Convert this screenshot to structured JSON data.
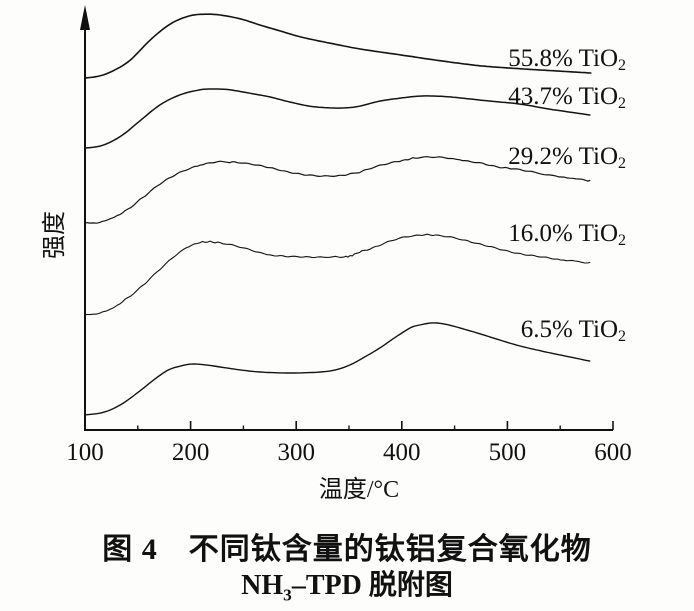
{
  "figure": {
    "caption_line1": "图 4　不同钛含量的钛铝复合氧化物",
    "caption_line2": {
      "prefix": "NH",
      "sub": "3",
      "suffix": "–TPD 脱附图"
    }
  },
  "chart_data": {
    "type": "line",
    "title": "图 4 不同钛含量的钛铝复合氧化物 NH3-TPD 脱附图",
    "xlabel": "温度/°C",
    "ylabel": "强度",
    "xlim": [
      100,
      600
    ],
    "ylim": [
      0,
      105
    ],
    "x_major_ticks": [
      100,
      200,
      300,
      400,
      500,
      600
    ],
    "x_minor_ticks": [
      150,
      250,
      350,
      450,
      550
    ],
    "x_tick_labels": [
      "100",
      "200",
      "300",
      "400",
      "500",
      "600"
    ],
    "grid": false,
    "legend_position": "inline-right-of-curves",
    "y_axis_style": "arrow, no ticks, intensity in arbitrary units",
    "series": [
      {
        "name": "55.8% TiO2",
        "label_main": "55.8% TiO",
        "label_sub": "2",
        "noisy": false,
        "points": [
          [
            100,
            83.8
          ],
          [
            114,
            84.3
          ],
          [
            128,
            85.7
          ],
          [
            143,
            88.1
          ],
          [
            162,
            92.9
          ],
          [
            181,
            96.7
          ],
          [
            199,
            98.6
          ],
          [
            214,
            99.0
          ],
          [
            228,
            98.8
          ],
          [
            247,
            97.9
          ],
          [
            266,
            96.4
          ],
          [
            285,
            95.0
          ],
          [
            304,
            93.6
          ],
          [
            332,
            92.1
          ],
          [
            361,
            90.7
          ],
          [
            399,
            89.3
          ],
          [
            437,
            87.9
          ],
          [
            475,
            86.7
          ],
          [
            513,
            86.0
          ],
          [
            546,
            85.5
          ],
          [
            579,
            85.0
          ]
        ]
      },
      {
        "name": "43.7% TiO2",
        "label_main": "43.7% TiO",
        "label_sub": "2",
        "noisy": false,
        "points": [
          [
            100,
            67.1
          ],
          [
            114,
            67.6
          ],
          [
            126,
            68.8
          ],
          [
            138,
            70.7
          ],
          [
            152,
            73.6
          ],
          [
            171,
            77.4
          ],
          [
            190,
            79.8
          ],
          [
            209,
            81.0
          ],
          [
            223,
            81.2
          ],
          [
            237,
            81.0
          ],
          [
            256,
            80.2
          ],
          [
            275,
            79.3
          ],
          [
            294,
            78.1
          ],
          [
            313,
            77.1
          ],
          [
            332,
            76.7
          ],
          [
            346,
            76.7
          ],
          [
            360,
            77.1
          ],
          [
            379,
            78.3
          ],
          [
            398,
            79.0
          ],
          [
            417,
            79.5
          ],
          [
            432,
            79.5
          ],
          [
            446,
            79.3
          ],
          [
            465,
            78.8
          ],
          [
            484,
            78.3
          ],
          [
            512,
            77.6
          ],
          [
            540,
            76.4
          ],
          [
            559,
            75.7
          ],
          [
            578,
            75.0
          ]
        ]
      },
      {
        "name": "29.2% TiO2",
        "label_main": "29.2% TiO",
        "label_sub": "2",
        "noisy": true,
        "points": [
          [
            100,
            49.3
          ],
          [
            114,
            49.5
          ],
          [
            126,
            50.5
          ],
          [
            138,
            52.1
          ],
          [
            152,
            54.8
          ],
          [
            171,
            58.6
          ],
          [
            190,
            61.4
          ],
          [
            209,
            63.1
          ],
          [
            223,
            63.8
          ],
          [
            237,
            63.8
          ],
          [
            256,
            63.3
          ],
          [
            275,
            62.4
          ],
          [
            294,
            61.4
          ],
          [
            313,
            60.7
          ],
          [
            332,
            60.5
          ],
          [
            346,
            60.7
          ],
          [
            360,
            61.4
          ],
          [
            379,
            62.9
          ],
          [
            398,
            64.0
          ],
          [
            413,
            64.8
          ],
          [
            427,
            65.0
          ],
          [
            441,
            64.8
          ],
          [
            455,
            64.3
          ],
          [
            474,
            63.6
          ],
          [
            493,
            62.6
          ],
          [
            512,
            61.9
          ],
          [
            540,
            60.7
          ],
          [
            559,
            60.0
          ],
          [
            578,
            59.3
          ]
        ]
      },
      {
        "name": "16.0% TiO2",
        "label_main": "16.0% TiO",
        "label_sub": "2",
        "noisy": true,
        "points": [
          [
            100,
            27.4
          ],
          [
            114,
            27.9
          ],
          [
            126,
            29.0
          ],
          [
            138,
            31.0
          ],
          [
            152,
            33.8
          ],
          [
            171,
            38.3
          ],
          [
            190,
            42.4
          ],
          [
            204,
            44.3
          ],
          [
            216,
            44.8
          ],
          [
            228,
            44.5
          ],
          [
            242,
            43.8
          ],
          [
            256,
            42.9
          ],
          [
            270,
            41.9
          ],
          [
            285,
            41.4
          ],
          [
            304,
            41.2
          ],
          [
            323,
            41.2
          ],
          [
            342,
            41.2
          ],
          [
            351,
            41.4
          ],
          [
            360,
            42.4
          ],
          [
            375,
            43.6
          ],
          [
            389,
            45.0
          ],
          [
            403,
            46.0
          ],
          [
            417,
            46.4
          ],
          [
            432,
            46.4
          ],
          [
            446,
            46.0
          ],
          [
            460,
            45.2
          ],
          [
            474,
            44.3
          ],
          [
            493,
            43.1
          ],
          [
            512,
            41.9
          ],
          [
            531,
            41.2
          ],
          [
            550,
            40.5
          ],
          [
            564,
            40.2
          ],
          [
            578,
            39.8
          ]
        ]
      },
      {
        "name": "6.5% TiO2",
        "label_main": "6.5% TiO",
        "label_sub": "2",
        "noisy": false,
        "points": [
          [
            100,
            3.6
          ],
          [
            114,
            4.0
          ],
          [
            126,
            5.0
          ],
          [
            138,
            6.7
          ],
          [
            152,
            9.3
          ],
          [
            166,
            12.1
          ],
          [
            179,
            14.3
          ],
          [
            190,
            15.2
          ],
          [
            201,
            15.7
          ],
          [
            214,
            15.5
          ],
          [
            228,
            15.0
          ],
          [
            247,
            14.3
          ],
          [
            266,
            13.8
          ],
          [
            285,
            13.6
          ],
          [
            304,
            13.6
          ],
          [
            323,
            13.8
          ],
          [
            337,
            14.3
          ],
          [
            351,
            15.5
          ],
          [
            365,
            17.4
          ],
          [
            379,
            19.5
          ],
          [
            394,
            22.1
          ],
          [
            408,
            24.3
          ],
          [
            417,
            25.0
          ],
          [
            429,
            25.5
          ],
          [
            441,
            25.2
          ],
          [
            455,
            24.3
          ],
          [
            474,
            22.9
          ],
          [
            493,
            21.4
          ],
          [
            512,
            20.0
          ],
          [
            536,
            18.6
          ],
          [
            559,
            17.4
          ],
          [
            578,
            16.4
          ]
        ]
      }
    ]
  }
}
